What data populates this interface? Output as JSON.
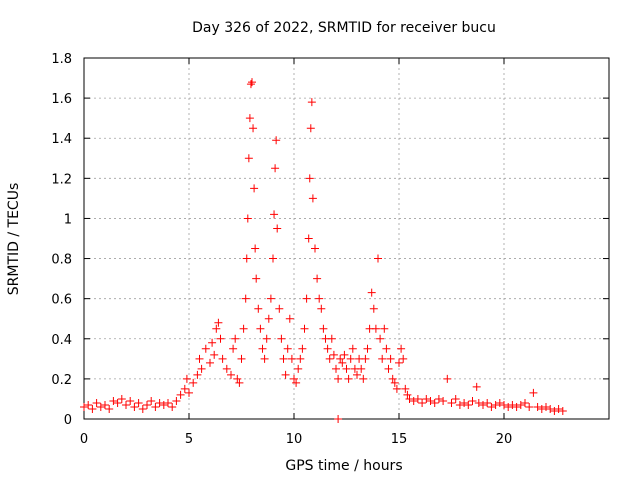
{
  "chart_data": {
    "type": "scatter",
    "title": "Day 326 of 2022, SRMTID for receiver bucu",
    "xlabel": "GPS time / hours",
    "ylabel": "SRMTID / TECUs",
    "xlim": [
      0,
      25
    ],
    "ylim": [
      0,
      1.8
    ],
    "xticks": [
      "0",
      "5",
      "10",
      "15",
      "20"
    ],
    "xtick_values": [
      0,
      5,
      10,
      15,
      20
    ],
    "yticks": [
      "0",
      "0.2",
      "0.4",
      "0.6",
      "0.8",
      "1",
      "1.2",
      "1.4",
      "1.6",
      "1.8"
    ],
    "ytick_values": [
      0,
      0.2,
      0.4,
      0.6,
      0.8,
      1.0,
      1.2,
      1.4,
      1.6,
      1.8
    ],
    "grid": true,
    "marker": "+",
    "series": [
      {
        "name": "SRMTID",
        "color": "#ff0000",
        "points": [
          [
            0.0,
            0.06
          ],
          [
            0.2,
            0.07
          ],
          [
            0.4,
            0.05
          ],
          [
            0.6,
            0.08
          ],
          [
            0.8,
            0.06
          ],
          [
            1.0,
            0.07
          ],
          [
            1.2,
            0.05
          ],
          [
            1.4,
            0.09
          ],
          [
            1.6,
            0.08
          ],
          [
            1.8,
            0.1
          ],
          [
            2.0,
            0.07
          ],
          [
            2.2,
            0.09
          ],
          [
            2.4,
            0.06
          ],
          [
            2.6,
            0.08
          ],
          [
            2.8,
            0.05
          ],
          [
            3.0,
            0.07
          ],
          [
            3.2,
            0.09
          ],
          [
            3.4,
            0.06
          ],
          [
            3.6,
            0.08
          ],
          [
            3.8,
            0.07
          ],
          [
            4.0,
            0.08
          ],
          [
            4.2,
            0.06
          ],
          [
            4.4,
            0.09
          ],
          [
            4.6,
            0.12
          ],
          [
            4.8,
            0.15
          ],
          [
            4.9,
            0.2
          ],
          [
            5.0,
            0.13
          ],
          [
            5.2,
            0.18
          ],
          [
            5.4,
            0.22
          ],
          [
            5.5,
            0.3
          ],
          [
            5.6,
            0.25
          ],
          [
            5.8,
            0.35
          ],
          [
            6.0,
            0.28
          ],
          [
            6.1,
            0.38
          ],
          [
            6.2,
            0.32
          ],
          [
            6.3,
            0.45
          ],
          [
            6.4,
            0.48
          ],
          [
            6.5,
            0.4
          ],
          [
            6.6,
            0.3
          ],
          [
            6.8,
            0.25
          ],
          [
            7.0,
            0.22
          ],
          [
            7.1,
            0.35
          ],
          [
            7.2,
            0.4
          ],
          [
            7.3,
            0.2
          ],
          [
            7.4,
            0.18
          ],
          [
            7.5,
            0.3
          ],
          [
            7.6,
            0.45
          ],
          [
            7.7,
            0.6
          ],
          [
            7.75,
            0.8
          ],
          [
            7.8,
            1.0
          ],
          [
            7.85,
            1.3
          ],
          [
            7.9,
            1.5
          ],
          [
            7.95,
            1.67
          ],
          [
            8.0,
            1.68
          ],
          [
            8.05,
            1.45
          ],
          [
            8.1,
            1.15
          ],
          [
            8.15,
            0.85
          ],
          [
            8.2,
            0.7
          ],
          [
            8.3,
            0.55
          ],
          [
            8.4,
            0.45
          ],
          [
            8.5,
            0.35
          ],
          [
            8.6,
            0.3
          ],
          [
            8.7,
            0.4
          ],
          [
            8.8,
            0.5
          ],
          [
            8.9,
            0.6
          ],
          [
            9.0,
            0.8
          ],
          [
            9.05,
            1.02
          ],
          [
            9.1,
            1.25
          ],
          [
            9.15,
            1.39
          ],
          [
            9.2,
            0.95
          ],
          [
            9.3,
            0.55
          ],
          [
            9.4,
            0.4
          ],
          [
            9.5,
            0.3
          ],
          [
            9.6,
            0.22
          ],
          [
            9.7,
            0.35
          ],
          [
            9.8,
            0.5
          ],
          [
            9.9,
            0.3
          ],
          [
            10.0,
            0.2
          ],
          [
            10.1,
            0.18
          ],
          [
            10.2,
            0.25
          ],
          [
            10.3,
            0.3
          ],
          [
            10.4,
            0.35
          ],
          [
            10.5,
            0.45
          ],
          [
            10.6,
            0.6
          ],
          [
            10.7,
            0.9
          ],
          [
            10.75,
            1.2
          ],
          [
            10.8,
            1.45
          ],
          [
            10.85,
            1.58
          ],
          [
            10.9,
            1.1
          ],
          [
            11.0,
            0.85
          ],
          [
            11.1,
            0.7
          ],
          [
            11.2,
            0.6
          ],
          [
            11.3,
            0.55
          ],
          [
            11.4,
            0.45
          ],
          [
            11.5,
            0.4
          ],
          [
            11.6,
            0.35
          ],
          [
            11.7,
            0.3
          ],
          [
            11.8,
            0.4
          ],
          [
            11.9,
            0.32
          ],
          [
            12.0,
            0.25
          ],
          [
            12.1,
            0.2
          ],
          [
            12.2,
            0.3
          ],
          [
            12.3,
            0.28
          ],
          [
            12.4,
            0.32
          ],
          [
            12.5,
            0.25
          ],
          [
            12.6,
            0.2
          ],
          [
            12.7,
            0.3
          ],
          [
            12.8,
            0.35
          ],
          [
            12.9,
            0.25
          ],
          [
            13.0,
            0.22
          ],
          [
            13.1,
            0.3
          ],
          [
            13.2,
            0.25
          ],
          [
            13.3,
            0.2
          ],
          [
            13.4,
            0.3
          ],
          [
            13.5,
            0.35
          ],
          [
            13.6,
            0.45
          ],
          [
            13.7,
            0.63
          ],
          [
            13.8,
            0.55
          ],
          [
            13.9,
            0.45
          ],
          [
            14.0,
            0.8
          ],
          [
            14.1,
            0.4
          ],
          [
            14.2,
            0.3
          ],
          [
            14.3,
            0.45
          ],
          [
            14.4,
            0.35
          ],
          [
            14.5,
            0.25
          ],
          [
            14.6,
            0.3
          ],
          [
            14.7,
            0.2
          ],
          [
            14.8,
            0.18
          ],
          [
            14.9,
            0.15
          ],
          [
            15.0,
            0.28
          ],
          [
            15.1,
            0.35
          ],
          [
            15.2,
            0.3
          ],
          [
            15.3,
            0.15
          ],
          [
            15.4,
            0.12
          ],
          [
            15.5,
            0.1
          ],
          [
            15.7,
            0.09
          ],
          [
            15.9,
            0.1
          ],
          [
            16.1,
            0.08
          ],
          [
            16.3,
            0.1
          ],
          [
            16.5,
            0.09
          ],
          [
            16.7,
            0.08
          ],
          [
            16.9,
            0.1
          ],
          [
            17.1,
            0.09
          ],
          [
            17.3,
            0.2
          ],
          [
            17.5,
            0.08
          ],
          [
            17.7,
            0.1
          ],
          [
            17.9,
            0.07
          ],
          [
            18.1,
            0.08
          ],
          [
            18.3,
            0.07
          ],
          [
            18.5,
            0.09
          ],
          [
            18.7,
            0.16
          ],
          [
            18.8,
            0.08
          ],
          [
            19.0,
            0.07
          ],
          [
            19.2,
            0.08
          ],
          [
            19.4,
            0.06
          ],
          [
            19.6,
            0.07
          ],
          [
            19.8,
            0.08
          ],
          [
            20.0,
            0.07
          ],
          [
            20.2,
            0.06
          ],
          [
            20.4,
            0.07
          ],
          [
            20.6,
            0.06
          ],
          [
            20.8,
            0.07
          ],
          [
            21.0,
            0.08
          ],
          [
            21.2,
            0.06
          ],
          [
            21.4,
            0.13
          ],
          [
            21.6,
            0.06
          ],
          [
            21.8,
            0.05
          ],
          [
            22.0,
            0.06
          ],
          [
            22.2,
            0.05
          ],
          [
            22.4,
            0.04
          ],
          [
            22.6,
            0.05
          ],
          [
            22.8,
            0.04
          ],
          [
            12.1,
            0.0
          ]
        ]
      }
    ]
  }
}
